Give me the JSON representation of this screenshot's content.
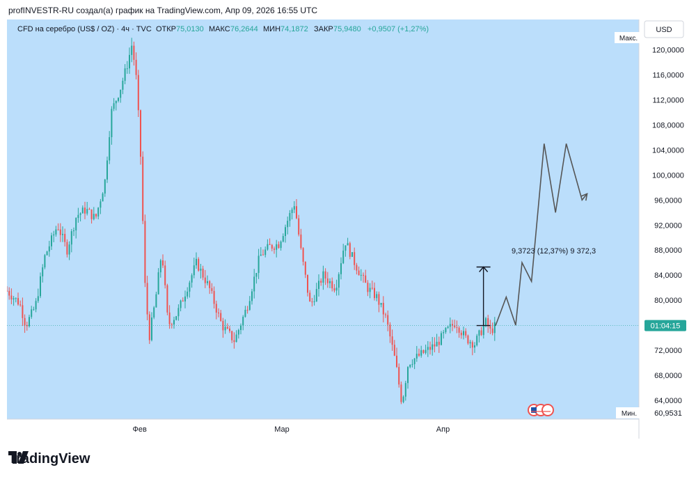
{
  "header": {
    "caption": "profINVESTR-RU создал(а) график на TradingView.com, Апр 09, 2026 16:55 UTC"
  },
  "legend": {
    "symbol": "CFD на серебро (US$ / OZ) · 4ч · TVC",
    "open_label": "ОТКР",
    "open_value": "75,0130",
    "high_label": "МАКС",
    "high_value": "76,2644",
    "low_label": "МИН",
    "low_value": "74,1872",
    "close_label": "ЗАКР",
    "close_value": "75,9480",
    "change": "+0,9507 (+1,27%)"
  },
  "currency_button": "USD",
  "price_axis": {
    "max_label": "Макс.",
    "min_label": "Мин.",
    "min_value": "60,9531",
    "max_value": "120,0000",
    "current_time": "01:04:15",
    "current_price": 75.95
  },
  "measure_label": "9,3723 (12,37%) 9 372,3",
  "brand": "TradingView",
  "colors": {
    "background": "#bbdefb",
    "up": "#26a69a",
    "down": "#ef5350",
    "projection": "#555555",
    "axis_text": "#131722",
    "current_badge": "#26a69a"
  },
  "chart_data": {
    "type": "candlestick",
    "title": "CFD на серебро (US$ / OZ)",
    "timeframe": "4ч",
    "y_ticks": [
      64,
      68,
      72,
      76,
      80,
      84,
      88,
      92,
      96,
      100,
      104,
      108,
      112,
      116,
      120
    ],
    "y_tick_labels": [
      "64,0000",
      "68,0000",
      "72,0000",
      "76,0000",
      "80,0000",
      "84,0000",
      "88,0000",
      "92,0000",
      "96,0000",
      "100,0000",
      "104,0000",
      "108,0000",
      "112,0000",
      "116,0000",
      "120,0000"
    ],
    "ylim": [
      61,
      121.5
    ],
    "x_ticks": [
      {
        "label": "Фев",
        "x": 0.21
      },
      {
        "label": "Мар",
        "x": 0.435
      },
      {
        "label": "Апр",
        "x": 0.69
      }
    ],
    "price_path": [
      [
        0.0,
        81.5
      ],
      [
        0.02,
        79.5
      ],
      [
        0.03,
        76.0
      ],
      [
        0.045,
        79.0
      ],
      [
        0.06,
        87.0
      ],
      [
        0.08,
        92.0
      ],
      [
        0.095,
        88.0
      ],
      [
        0.11,
        93.5
      ],
      [
        0.125,
        94.5
      ],
      [
        0.14,
        93.0
      ],
      [
        0.155,
        99.0
      ],
      [
        0.165,
        110.0
      ],
      [
        0.18,
        114.0
      ],
      [
        0.19,
        117.5
      ],
      [
        0.198,
        121.0
      ],
      [
        0.205,
        115.0
      ],
      [
        0.212,
        102.0
      ],
      [
        0.218,
        83.0
      ],
      [
        0.225,
        74.0
      ],
      [
        0.235,
        80.0
      ],
      [
        0.245,
        88.0
      ],
      [
        0.255,
        76.0
      ],
      [
        0.27,
        78.0
      ],
      [
        0.285,
        82.0
      ],
      [
        0.3,
        86.0
      ],
      [
        0.32,
        82.0
      ],
      [
        0.34,
        76.0
      ],
      [
        0.36,
        73.5
      ],
      [
        0.38,
        79.0
      ],
      [
        0.4,
        87.0
      ],
      [
        0.415,
        88.5
      ],
      [
        0.43,
        89.0
      ],
      [
        0.445,
        93.0
      ],
      [
        0.455,
        95.5
      ],
      [
        0.465,
        88.0
      ],
      [
        0.48,
        79.0
      ],
      [
        0.5,
        84.0
      ],
      [
        0.52,
        82.0
      ],
      [
        0.535,
        89.5
      ],
      [
        0.55,
        86.0
      ],
      [
        0.57,
        82.0
      ],
      [
        0.585,
        80.5
      ],
      [
        0.6,
        77.0
      ],
      [
        0.615,
        70.0
      ],
      [
        0.625,
        63.5
      ],
      [
        0.635,
        70.0
      ],
      [
        0.65,
        71.0
      ],
      [
        0.665,
        72.0
      ],
      [
        0.68,
        73.0
      ],
      [
        0.695,
        75.0
      ],
      [
        0.71,
        76.5
      ],
      [
        0.725,
        74.0
      ],
      [
        0.74,
        73.0
      ],
      [
        0.75,
        75.0
      ],
      [
        0.758,
        76.5
      ],
      [
        0.765,
        75.0
      ],
      [
        0.773,
        75.95
      ]
    ],
    "measure": {
      "x": 0.754,
      "from": 75.95,
      "to": 85.3
    },
    "projection": [
      [
        0.773,
        75.9
      ],
      [
        0.79,
        80.5
      ],
      [
        0.805,
        76.0
      ],
      [
        0.815,
        86.0
      ],
      [
        0.83,
        83.0
      ],
      [
        0.85,
        105.0
      ],
      [
        0.868,
        94.0
      ],
      [
        0.885,
        105.0
      ],
      [
        0.91,
        96.0
      ],
      [
        0.918,
        97.0
      ]
    ]
  }
}
